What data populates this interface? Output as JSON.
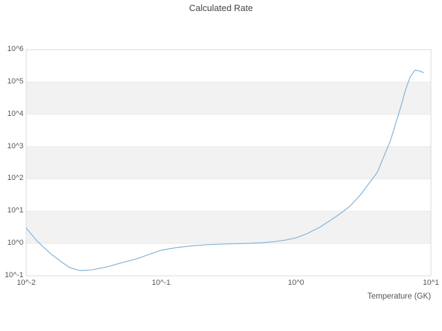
{
  "chart_data": {
    "type": "line",
    "title": "Calculated Rate",
    "xlabel": "Temperature (GK)",
    "ylabel": "",
    "xscale": "log",
    "yscale": "log",
    "xlim": [
      0.01,
      10
    ],
    "ylim": [
      0.1,
      1000000
    ],
    "x_tick_labels": [
      "10^-2",
      "10^-1",
      "10^0",
      "10^1"
    ],
    "x_tick_values": [
      0.01,
      0.1,
      1,
      10
    ],
    "y_tick_labels": [
      "10^-1",
      "10^0",
      "10^1",
      "10^2",
      "10^3",
      "10^4",
      "10^5",
      "10^6"
    ],
    "y_tick_values": [
      0.1,
      1,
      10,
      100,
      1000,
      10000,
      100000,
      1000000
    ],
    "grid": "horizontal",
    "legend": "none",
    "band_decades": [
      [
        1,
        10
      ],
      [
        100,
        1000
      ],
      [
        10000,
        100000
      ]
    ],
    "band_color": "#f2f2f2",
    "grid_color": "#e9e9e9",
    "border_color": "#d9d9d9",
    "series": [
      {
        "name": "calculated-rate",
        "color": "#7fb1d7",
        "x": [
          0.01,
          0.012,
          0.015,
          0.018,
          0.021,
          0.025,
          0.03,
          0.04,
          0.05,
          0.065,
          0.08,
          0.1,
          0.13,
          0.17,
          0.22,
          0.3,
          0.4,
          0.55,
          0.7,
          0.85,
          1.0,
          1.2,
          1.5,
          2.0,
          2.5,
          3.0,
          4.0,
          5.0,
          6.0,
          6.5,
          7.0,
          7.6,
          8.2,
          8.8
        ],
        "y": [
          3.0,
          1.2,
          0.5,
          0.28,
          0.18,
          0.145,
          0.15,
          0.19,
          0.25,
          0.33,
          0.45,
          0.62,
          0.75,
          0.85,
          0.92,
          0.97,
          1.0,
          1.05,
          1.15,
          1.3,
          1.5,
          2.0,
          3.2,
          7.0,
          14,
          32,
          160,
          1500,
          18000,
          60000,
          140000,
          230000,
          220000,
          195000
        ]
      }
    ]
  }
}
